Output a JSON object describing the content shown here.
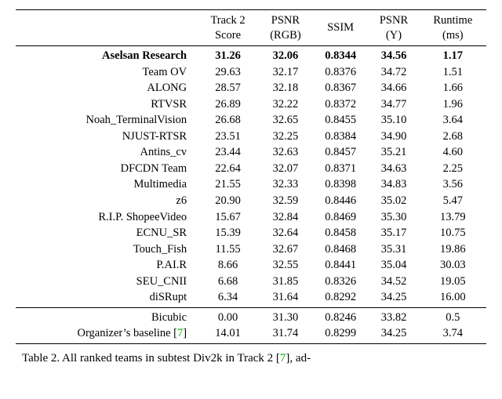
{
  "headers": {
    "team": "",
    "c1_l1": "Track 2",
    "c1_l2": "Score",
    "c2_l1": "PSNR",
    "c2_l2": "(RGB)",
    "c3": "SSIM",
    "c4_l1": "PSNR",
    "c4_l2": "(Y)",
    "c5_l1": "Runtime",
    "c5_l2": "(ms)"
  },
  "rows": [
    {
      "name": "Aselsan Research",
      "bold": true,
      "score": "31.26",
      "psnr_rgb": "32.06",
      "ssim": "0.8344",
      "psnr_y": "34.56",
      "runtime": "1.17"
    },
    {
      "name": "Team OV",
      "bold": false,
      "score": "29.63",
      "psnr_rgb": "32.17",
      "ssim": "0.8376",
      "psnr_y": "34.72",
      "runtime": "1.51"
    },
    {
      "name": "ALONG",
      "bold": false,
      "score": "28.57",
      "psnr_rgb": "32.18",
      "ssim": "0.8367",
      "psnr_y": "34.66",
      "runtime": "1.66"
    },
    {
      "name": "RTVSR",
      "bold": false,
      "score": "26.89",
      "psnr_rgb": "32.22",
      "ssim": "0.8372",
      "psnr_y": "34.77",
      "runtime": "1.96"
    },
    {
      "name": "Noah_TerminalVision",
      "bold": false,
      "score": "26.68",
      "psnr_rgb": "32.65",
      "ssim": "0.8455",
      "psnr_y": "35.10",
      "runtime": "3.64"
    },
    {
      "name": "NJUST-RTSR",
      "bold": false,
      "score": "23.51",
      "psnr_rgb": "32.25",
      "ssim": "0.8384",
      "psnr_y": "34.90",
      "runtime": "2.68"
    },
    {
      "name": "Antins_cv",
      "bold": false,
      "score": "23.44",
      "psnr_rgb": "32.63",
      "ssim": "0.8457",
      "psnr_y": "35.21",
      "runtime": "4.60"
    },
    {
      "name": "DFCDN Team",
      "bold": false,
      "score": "22.64",
      "psnr_rgb": "32.07",
      "ssim": "0.8371",
      "psnr_y": "34.63",
      "runtime": "2.25"
    },
    {
      "name": "Multimedia",
      "bold": false,
      "score": "21.55",
      "psnr_rgb": "32.33",
      "ssim": "0.8398",
      "psnr_y": "34.83",
      "runtime": "3.56"
    },
    {
      "name": "z6",
      "bold": false,
      "score": "20.90",
      "psnr_rgb": "32.59",
      "ssim": "0.8446",
      "psnr_y": "35.02",
      "runtime": "5.47"
    },
    {
      "name": "R.I.P. ShopeeVideo",
      "bold": false,
      "score": "15.67",
      "psnr_rgb": "32.84",
      "ssim": "0.8469",
      "psnr_y": "35.30",
      "runtime": "13.79"
    },
    {
      "name": "ECNU_SR",
      "bold": false,
      "score": "15.39",
      "psnr_rgb": "32.64",
      "ssim": "0.8458",
      "psnr_y": "35.17",
      "runtime": "10.75"
    },
    {
      "name": "Touch_Fish",
      "bold": false,
      "score": "11.55",
      "psnr_rgb": "32.67",
      "ssim": "0.8468",
      "psnr_y": "35.31",
      "runtime": "19.86"
    },
    {
      "name": "P.AI.R",
      "bold": false,
      "score": "8.66",
      "psnr_rgb": "32.55",
      "ssim": "0.8441",
      "psnr_y": "35.04",
      "runtime": "30.03"
    },
    {
      "name": "SEU_CNII",
      "bold": false,
      "score": "6.68",
      "psnr_rgb": "31.85",
      "ssim": "0.8326",
      "psnr_y": "34.52",
      "runtime": "19.05"
    },
    {
      "name": "diSRupt",
      "bold": false,
      "score": "6.34",
      "psnr_rgb": "31.64",
      "ssim": "0.8292",
      "psnr_y": "34.25",
      "runtime": "16.00"
    }
  ],
  "baselines": [
    {
      "name": "Bicubic",
      "ref": "",
      "score": "0.00",
      "psnr_rgb": "31.30",
      "ssim": "0.8246",
      "psnr_y": "33.82",
      "runtime": "0.5"
    },
    {
      "name": "Organizer’s baseline [",
      "ref": "7",
      "name_after": "]",
      "score": "14.01",
      "psnr_rgb": "31.74",
      "ssim": "0.8299",
      "psnr_y": "34.25",
      "runtime": "3.74"
    }
  ],
  "caption": {
    "prefix": "Table 2.  All ranked teams in subtest Div2k in Track 2 [",
    "ref": "7",
    "suffix": "], ad-"
  }
}
